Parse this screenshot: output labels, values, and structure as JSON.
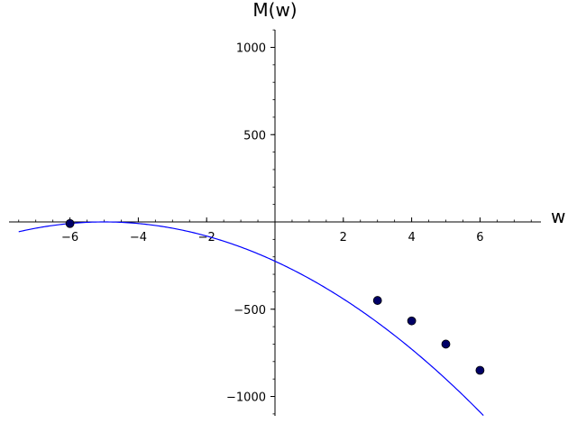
{
  "chart_data": {
    "type": "line",
    "xlabel": "w",
    "ylabel": "M(w)",
    "xlim": [
      -7.7,
      7.7
    ],
    "ylim": [
      -1110,
      1100
    ],
    "xticks": [
      -6,
      -4,
      -2,
      2,
      4,
      6
    ],
    "xtick_labels": [
      "−6",
      "−4",
      "−2",
      "2",
      "4",
      "6"
    ],
    "yticks": [
      -1000,
      -500,
      500,
      1000
    ],
    "ytick_labels": [
      "−1000",
      "−500",
      "500",
      "1000"
    ],
    "grid": false,
    "series": [
      {
        "kind": "curve",
        "function": "-9*(w+5)^2",
        "x_range": [
          -7.5,
          7.5
        ],
        "color": "#0000ff"
      },
      {
        "kind": "points",
        "x": [
          -6,
          3,
          4,
          5,
          6
        ],
        "y": [
          -9,
          -450,
          -567,
          -700,
          -850
        ],
        "color": "#000066"
      }
    ]
  }
}
